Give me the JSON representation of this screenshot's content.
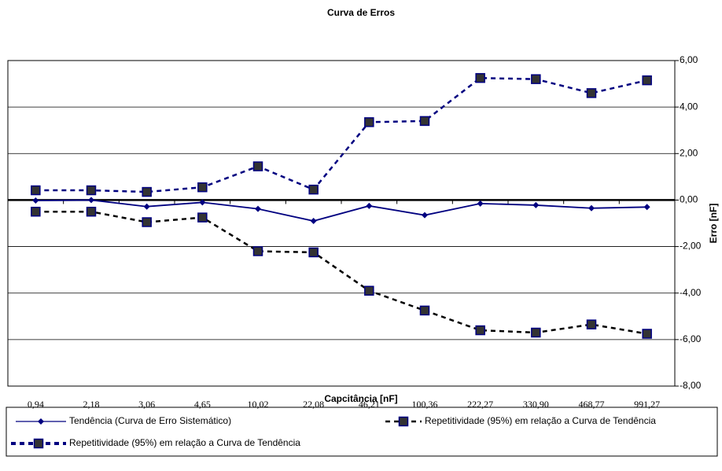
{
  "chart_data": {
    "type": "line",
    "title": "Curva de Erros",
    "x_label": "Capcitância [nF]",
    "y_label": "Erro [nF]",
    "categories": [
      "0,94",
      "2,18",
      "3,06",
      "4,65",
      "10,02",
      "22,08",
      "46,21",
      "100,36",
      "222,27",
      "330,90",
      "468,77",
      "991,27"
    ],
    "ylim": [
      -8,
      6
    ],
    "yticks": [
      {
        "value": -8,
        "label": "-8,00"
      },
      {
        "value": -6,
        "label": "-6,00"
      },
      {
        "value": -4,
        "label": "-4,00"
      },
      {
        "value": -2,
        "label": "-2,00"
      },
      {
        "value": 0,
        "label": "0,00"
      },
      {
        "value": 2,
        "label": "2,00"
      },
      {
        "value": 4,
        "label": "4,00"
      },
      {
        "value": 6,
        "label": "6,00"
      }
    ],
    "grid": true,
    "series": [
      {
        "name": "Tendência (Curva de Erro Sistemático)",
        "color": "#000080",
        "marker": "diamond",
        "dashed": false,
        "values": [
          -0.02,
          0.0,
          -0.28,
          -0.1,
          -0.38,
          -0.9,
          -0.25,
          -0.65,
          -0.15,
          -0.22,
          -0.35,
          -0.3
        ]
      },
      {
        "name": "Repetitividade (95%) em relação a Curva de Tendência",
        "color": "#000000",
        "marker": "square",
        "dashed": true,
        "values": [
          -0.5,
          -0.5,
          -0.95,
          -0.75,
          -2.2,
          -2.25,
          -3.9,
          -4.75,
          -5.6,
          -5.7,
          -5.35,
          -5.75
        ]
      },
      {
        "name": "Repetitividade (95%) em relação a Curva de Tendência",
        "color": "#000080",
        "marker": "square",
        "dashed": true,
        "values": [
          0.42,
          0.42,
          0.35,
          0.55,
          1.45,
          0.45,
          3.35,
          3.4,
          5.25,
          5.2,
          4.6,
          5.15
        ]
      }
    ]
  }
}
